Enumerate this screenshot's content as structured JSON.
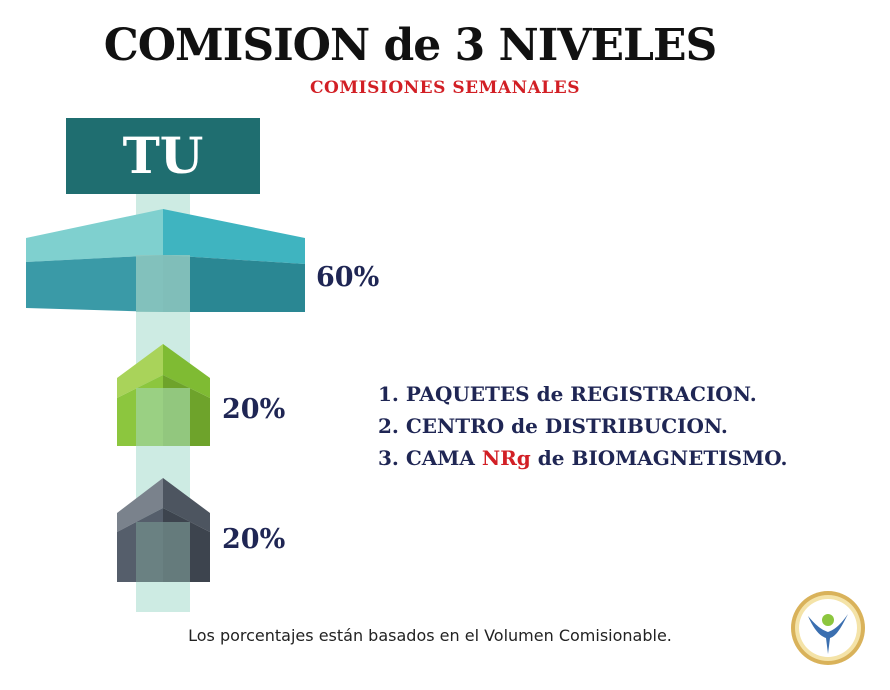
{
  "header": {
    "title": "COMISION de 3 NIVELES",
    "subtitle": "COMISIONES SEMANALES"
  },
  "diagram": {
    "top_label": "TU",
    "levels": [
      {
        "percent": "60%",
        "color": "#4bbcc3"
      },
      {
        "percent": "20%",
        "color": "#8cc63e"
      },
      {
        "percent": "20%",
        "color": "#555e6b"
      }
    ],
    "stem_color": "#cdebe3"
  },
  "list": {
    "item1": "1. PAQUETES de REGISTRACION.",
    "item2": "2. CENTRO de DISTRIBUCION.",
    "item3_prefix": "3. CAMA",
    "item3_highlight": "NRg",
    "item3_suffix": "de BIOMAGNETISMO."
  },
  "footer": {
    "note": "Los porcentajes están basados en el Volumen Comisionable."
  },
  "logo": {
    "icon": "person-logo-icon"
  }
}
